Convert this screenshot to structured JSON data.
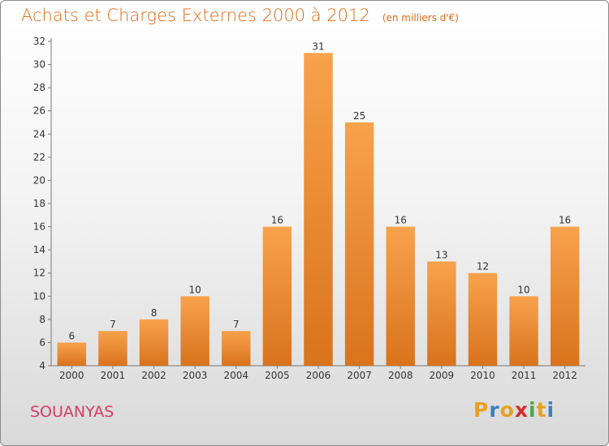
{
  "header": {
    "title": "Achats et Charges Externes 2000 à 2012",
    "unit": "(en milliers d'€)"
  },
  "commune": "SOUANYAS",
  "logo": {
    "letters": [
      "P",
      "r",
      "o",
      "x",
      "i",
      "t",
      "i"
    ],
    "colors": [
      "#e8a020",
      "#3a7fc4",
      "#e8a020",
      "#d62a2a",
      "#4aa84a",
      "#e8a020",
      "#3a7fc4"
    ]
  },
  "chart_data": {
    "type": "bar",
    "title": "Achats et Charges Externes 2000 à 2012",
    "subtitle": "(en milliers d'€)",
    "xlabel": "",
    "ylabel": "",
    "categories": [
      "2000",
      "2001",
      "2002",
      "2003",
      "2004",
      "2005",
      "2006",
      "2007",
      "2008",
      "2009",
      "2010",
      "2011",
      "2012"
    ],
    "values": [
      6,
      7,
      8,
      10,
      7,
      16,
      31,
      25,
      16,
      13,
      12,
      10,
      16
    ],
    "ylim": [
      4,
      32
    ],
    "yticks": [
      4,
      6,
      8,
      10,
      12,
      14,
      16,
      18,
      20,
      22,
      24,
      26,
      28,
      30,
      32
    ],
    "grid": false,
    "bar_color": "#f0902f"
  }
}
